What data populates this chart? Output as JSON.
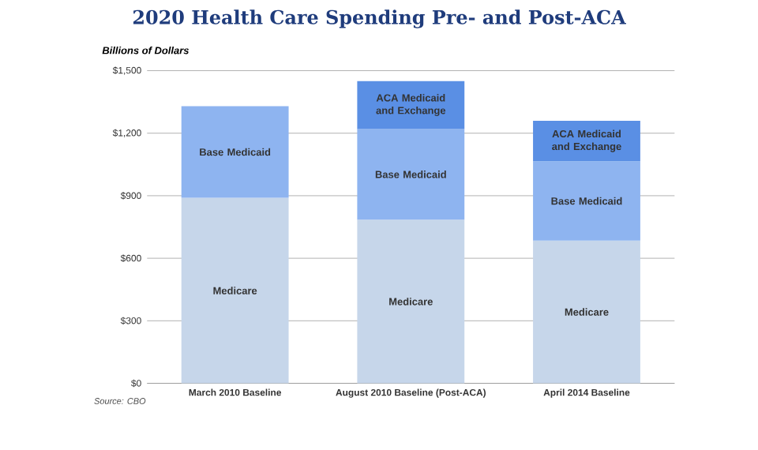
{
  "chart_data": {
    "type": "bar",
    "stacked": true,
    "title": "2020 Health Care Spending Pre- and Post-ACA",
    "ylabel": "Billions of Dollars",
    "categories": [
      "March 2010 Baseline",
      "August 2010 Baseline (Post-ACA)",
      "April 2014 Baseline"
    ],
    "series": [
      {
        "name": "Medicare",
        "color": "#c6d6ea",
        "values": [
          890,
          785,
          685
        ]
      },
      {
        "name": "Base Medicaid",
        "color": "#8eb4f0",
        "values": [
          440,
          435,
          380
        ]
      },
      {
        "name": "ACA Medicaid and Exchange",
        "color": "#5a8fe4",
        "values": [
          null,
          230,
          195
        ]
      }
    ],
    "ylim": [
      0,
      1500
    ],
    "yticks": [
      {
        "value": 0,
        "label": "$0"
      },
      {
        "value": 300,
        "label": "$300"
      },
      {
        "value": 600,
        "label": "$600"
      },
      {
        "value": 900,
        "label": "$900"
      },
      {
        "value": 1200,
        "label": "$1,200"
      },
      {
        "value": 1500,
        "label": "$1,500"
      }
    ],
    "grid": "y",
    "annotations": [
      "Source: CBO"
    ]
  }
}
